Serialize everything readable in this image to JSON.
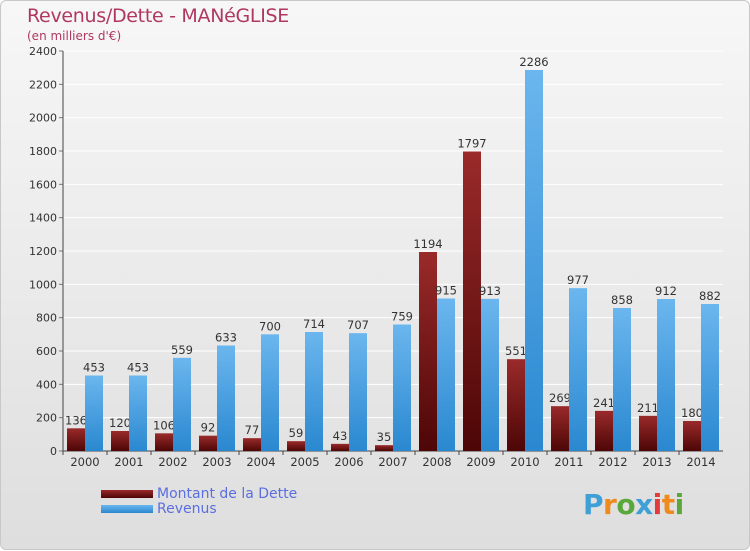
{
  "chart_data": {
    "type": "bar",
    "title": "Revenus/Dette - MANéGLISE",
    "subtitle": "(en milliers d'€)",
    "xlabel": "",
    "ylabel": "",
    "ylim": [
      0,
      2400
    ],
    "yticks": [
      0,
      200,
      400,
      600,
      800,
      1000,
      1200,
      1400,
      1600,
      1800,
      2000,
      2200,
      2400
    ],
    "grid": true,
    "categories": [
      "2000",
      "2001",
      "2002",
      "2003",
      "2004",
      "2005",
      "2006",
      "2007",
      "2008",
      "2009",
      "2010",
      "2011",
      "2012",
      "2013",
      "2014"
    ],
    "series": [
      {
        "name": "Montant de la Dette",
        "color": "#7a1010",
        "values": [
          136,
          120,
          106,
          92,
          77,
          59,
          43,
          35,
          1194,
          1797,
          551,
          269,
          241,
          211,
          180
        ]
      },
      {
        "name": "Revenus",
        "color": "#3d9be0",
        "values": [
          453,
          453,
          559,
          633,
          700,
          714,
          707,
          759,
          915,
          913,
          2286,
          977,
          858,
          912,
          882
        ]
      }
    ],
    "legend_position": "bottom-left"
  },
  "logo": {
    "letters": [
      "P",
      "r",
      "o",
      "x",
      "i",
      "t",
      "i"
    ],
    "colors": [
      "#3f9fd6",
      "#ef8a1f",
      "#5aa83c",
      "#3f9fd6",
      "#e23b3b",
      "#ef8a1f",
      "#5aa83c"
    ]
  }
}
